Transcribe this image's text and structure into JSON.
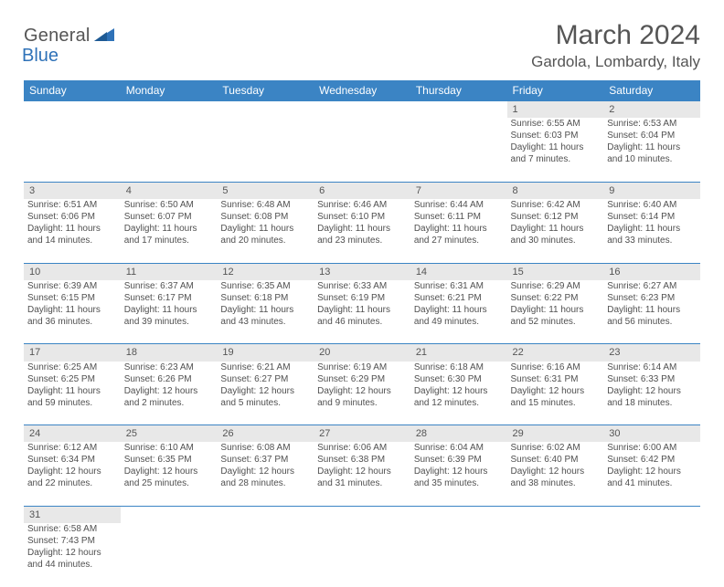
{
  "logo": {
    "general": "General",
    "blue": "Blue"
  },
  "title": "March 2024",
  "location": "Gardola, Lombardy, Italy",
  "columns": [
    "Sunday",
    "Monday",
    "Tuesday",
    "Wednesday",
    "Thursday",
    "Friday",
    "Saturday"
  ],
  "header_bg": "#3b84c4",
  "header_fg": "#ffffff",
  "daynum_bg": "#e8e8e8",
  "border_color": "#3b84c4",
  "text_color": "#505050",
  "logo_blue_color": "#2f72b8",
  "weeks": [
    {
      "nums": [
        "",
        "",
        "",
        "",
        "",
        "1",
        "2"
      ],
      "cells": [
        null,
        null,
        null,
        null,
        null,
        {
          "sunrise": "Sunrise: 6:55 AM",
          "sunset": "Sunset: 6:03 PM",
          "d1": "Daylight: 11 hours",
          "d2": "and 7 minutes."
        },
        {
          "sunrise": "Sunrise: 6:53 AM",
          "sunset": "Sunset: 6:04 PM",
          "d1": "Daylight: 11 hours",
          "d2": "and 10 minutes."
        }
      ]
    },
    {
      "nums": [
        "3",
        "4",
        "5",
        "6",
        "7",
        "8",
        "9"
      ],
      "cells": [
        {
          "sunrise": "Sunrise: 6:51 AM",
          "sunset": "Sunset: 6:06 PM",
          "d1": "Daylight: 11 hours",
          "d2": "and 14 minutes."
        },
        {
          "sunrise": "Sunrise: 6:50 AM",
          "sunset": "Sunset: 6:07 PM",
          "d1": "Daylight: 11 hours",
          "d2": "and 17 minutes."
        },
        {
          "sunrise": "Sunrise: 6:48 AM",
          "sunset": "Sunset: 6:08 PM",
          "d1": "Daylight: 11 hours",
          "d2": "and 20 minutes."
        },
        {
          "sunrise": "Sunrise: 6:46 AM",
          "sunset": "Sunset: 6:10 PM",
          "d1": "Daylight: 11 hours",
          "d2": "and 23 minutes."
        },
        {
          "sunrise": "Sunrise: 6:44 AM",
          "sunset": "Sunset: 6:11 PM",
          "d1": "Daylight: 11 hours",
          "d2": "and 27 minutes."
        },
        {
          "sunrise": "Sunrise: 6:42 AM",
          "sunset": "Sunset: 6:12 PM",
          "d1": "Daylight: 11 hours",
          "d2": "and 30 minutes."
        },
        {
          "sunrise": "Sunrise: 6:40 AM",
          "sunset": "Sunset: 6:14 PM",
          "d1": "Daylight: 11 hours",
          "d2": "and 33 minutes."
        }
      ]
    },
    {
      "nums": [
        "10",
        "11",
        "12",
        "13",
        "14",
        "15",
        "16"
      ],
      "cells": [
        {
          "sunrise": "Sunrise: 6:39 AM",
          "sunset": "Sunset: 6:15 PM",
          "d1": "Daylight: 11 hours",
          "d2": "and 36 minutes."
        },
        {
          "sunrise": "Sunrise: 6:37 AM",
          "sunset": "Sunset: 6:17 PM",
          "d1": "Daylight: 11 hours",
          "d2": "and 39 minutes."
        },
        {
          "sunrise": "Sunrise: 6:35 AM",
          "sunset": "Sunset: 6:18 PM",
          "d1": "Daylight: 11 hours",
          "d2": "and 43 minutes."
        },
        {
          "sunrise": "Sunrise: 6:33 AM",
          "sunset": "Sunset: 6:19 PM",
          "d1": "Daylight: 11 hours",
          "d2": "and 46 minutes."
        },
        {
          "sunrise": "Sunrise: 6:31 AM",
          "sunset": "Sunset: 6:21 PM",
          "d1": "Daylight: 11 hours",
          "d2": "and 49 minutes."
        },
        {
          "sunrise": "Sunrise: 6:29 AM",
          "sunset": "Sunset: 6:22 PM",
          "d1": "Daylight: 11 hours",
          "d2": "and 52 minutes."
        },
        {
          "sunrise": "Sunrise: 6:27 AM",
          "sunset": "Sunset: 6:23 PM",
          "d1": "Daylight: 11 hours",
          "d2": "and 56 minutes."
        }
      ]
    },
    {
      "nums": [
        "17",
        "18",
        "19",
        "20",
        "21",
        "22",
        "23"
      ],
      "cells": [
        {
          "sunrise": "Sunrise: 6:25 AM",
          "sunset": "Sunset: 6:25 PM",
          "d1": "Daylight: 11 hours",
          "d2": "and 59 minutes."
        },
        {
          "sunrise": "Sunrise: 6:23 AM",
          "sunset": "Sunset: 6:26 PM",
          "d1": "Daylight: 12 hours",
          "d2": "and 2 minutes."
        },
        {
          "sunrise": "Sunrise: 6:21 AM",
          "sunset": "Sunset: 6:27 PM",
          "d1": "Daylight: 12 hours",
          "d2": "and 5 minutes."
        },
        {
          "sunrise": "Sunrise: 6:19 AM",
          "sunset": "Sunset: 6:29 PM",
          "d1": "Daylight: 12 hours",
          "d2": "and 9 minutes."
        },
        {
          "sunrise": "Sunrise: 6:18 AM",
          "sunset": "Sunset: 6:30 PM",
          "d1": "Daylight: 12 hours",
          "d2": "and 12 minutes."
        },
        {
          "sunrise": "Sunrise: 6:16 AM",
          "sunset": "Sunset: 6:31 PM",
          "d1": "Daylight: 12 hours",
          "d2": "and 15 minutes."
        },
        {
          "sunrise": "Sunrise: 6:14 AM",
          "sunset": "Sunset: 6:33 PM",
          "d1": "Daylight: 12 hours",
          "d2": "and 18 minutes."
        }
      ]
    },
    {
      "nums": [
        "24",
        "25",
        "26",
        "27",
        "28",
        "29",
        "30"
      ],
      "cells": [
        {
          "sunrise": "Sunrise: 6:12 AM",
          "sunset": "Sunset: 6:34 PM",
          "d1": "Daylight: 12 hours",
          "d2": "and 22 minutes."
        },
        {
          "sunrise": "Sunrise: 6:10 AM",
          "sunset": "Sunset: 6:35 PM",
          "d1": "Daylight: 12 hours",
          "d2": "and 25 minutes."
        },
        {
          "sunrise": "Sunrise: 6:08 AM",
          "sunset": "Sunset: 6:37 PM",
          "d1": "Daylight: 12 hours",
          "d2": "and 28 minutes."
        },
        {
          "sunrise": "Sunrise: 6:06 AM",
          "sunset": "Sunset: 6:38 PM",
          "d1": "Daylight: 12 hours",
          "d2": "and 31 minutes."
        },
        {
          "sunrise": "Sunrise: 6:04 AM",
          "sunset": "Sunset: 6:39 PM",
          "d1": "Daylight: 12 hours",
          "d2": "and 35 minutes."
        },
        {
          "sunrise": "Sunrise: 6:02 AM",
          "sunset": "Sunset: 6:40 PM",
          "d1": "Daylight: 12 hours",
          "d2": "and 38 minutes."
        },
        {
          "sunrise": "Sunrise: 6:00 AM",
          "sunset": "Sunset: 6:42 PM",
          "d1": "Daylight: 12 hours",
          "d2": "and 41 minutes."
        }
      ]
    },
    {
      "nums": [
        "31",
        "",
        "",
        "",
        "",
        "",
        ""
      ],
      "cells": [
        {
          "sunrise": "Sunrise: 6:58 AM",
          "sunset": "Sunset: 7:43 PM",
          "d1": "Daylight: 12 hours",
          "d2": "and 44 minutes."
        },
        null,
        null,
        null,
        null,
        null,
        null
      ]
    }
  ]
}
